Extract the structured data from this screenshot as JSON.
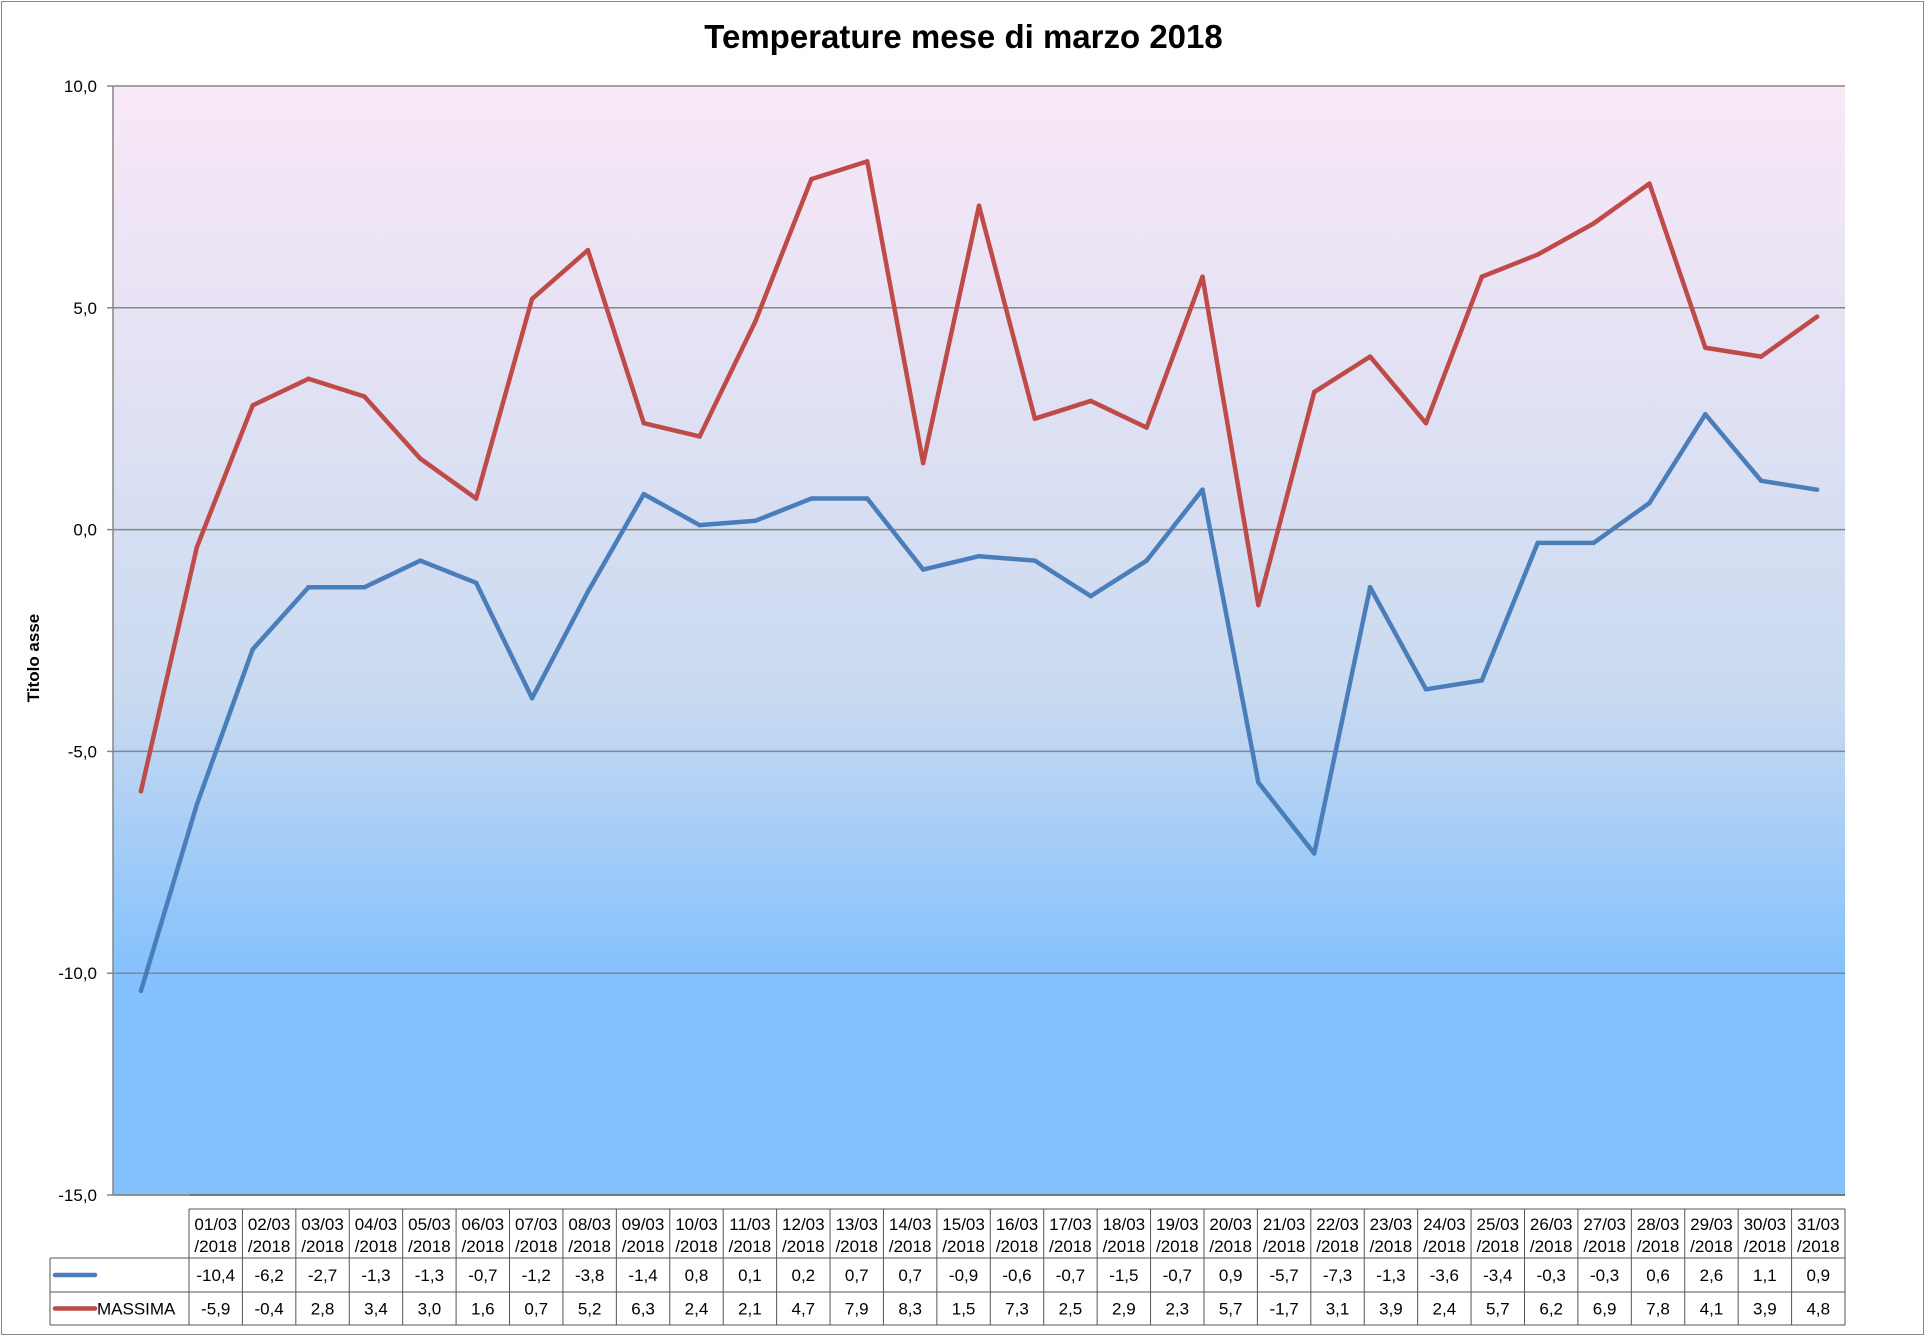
{
  "chart_data": {
    "type": "line",
    "title": "Temperature mese di marzo 2018",
    "ylabel": "Titolo asse",
    "xlabel": "",
    "ylim": [
      -15,
      10
    ],
    "y_ticks": [
      "10,0",
      "5,0",
      "0,0",
      "-5,0",
      "-10,0",
      "-15,0"
    ],
    "y_tick_values": [
      10,
      5,
      0,
      -5,
      -10,
      -15
    ],
    "grid": true,
    "legend": "data-table",
    "background_gradient": [
      "#f9e8f7",
      "#84c1fd"
    ],
    "categories": [
      [
        "01/03",
        "/2018"
      ],
      [
        "02/03",
        "/2018"
      ],
      [
        "03/03",
        "/2018"
      ],
      [
        "04/03",
        "/2018"
      ],
      [
        "05/03",
        "/2018"
      ],
      [
        "06/03",
        "/2018"
      ],
      [
        "07/03",
        "/2018"
      ],
      [
        "08/03",
        "/2018"
      ],
      [
        "09/03",
        "/2018"
      ],
      [
        "10/03",
        "/2018"
      ],
      [
        "11/03",
        "/2018"
      ],
      [
        "12/03",
        "/2018"
      ],
      [
        "13/03",
        "/2018"
      ],
      [
        "14/03",
        "/2018"
      ],
      [
        "15/03",
        "/2018"
      ],
      [
        "16/03",
        "/2018"
      ],
      [
        "17/03",
        "/2018"
      ],
      [
        "18/03",
        "/2018"
      ],
      [
        "19/03",
        "/2018"
      ],
      [
        "20/03",
        "/2018"
      ],
      [
        "21/03",
        "/2018"
      ],
      [
        "22/03",
        "/2018"
      ],
      [
        "23/03",
        "/2018"
      ],
      [
        "24/03",
        "/2018"
      ],
      [
        "25/03",
        "/2018"
      ],
      [
        "26/03",
        "/2018"
      ],
      [
        "27/03",
        "/2018"
      ],
      [
        "28/03",
        "/2018"
      ],
      [
        "29/03",
        "/2018"
      ],
      [
        "30/03",
        "/2018"
      ],
      [
        "31/03",
        "/2018"
      ]
    ],
    "series": [
      {
        "name": "",
        "color": "#4a7ebb",
        "values": [
          -10.4,
          -6.2,
          -2.7,
          -1.3,
          -1.3,
          -0.7,
          -1.2,
          -3.8,
          -1.4,
          0.8,
          0.1,
          0.2,
          0.7,
          0.7,
          -0.9,
          -0.6,
          -0.7,
          -1.5,
          -0.7,
          0.9,
          -5.7,
          -7.3,
          -1.3,
          -3.6,
          -3.4,
          -0.3,
          -0.3,
          0.6,
          2.6,
          1.1,
          0.9
        ],
        "labels": [
          "-10,4",
          "-6,2",
          "-2,7",
          "-1,3",
          "-1,3",
          "-0,7",
          "-1,2",
          "-3,8",
          "-1,4",
          "0,8",
          "0,1",
          "0,2",
          "0,7",
          "0,7",
          "-0,9",
          "-0,6",
          "-0,7",
          "-1,5",
          "-0,7",
          "0,9",
          "-5,7",
          "-7,3",
          "-1,3",
          "-3,6",
          "-3,4",
          "-0,3",
          "-0,3",
          "0,6",
          "2,6",
          "1,1",
          "0,9"
        ]
      },
      {
        "name": "MASSIMA",
        "color": "#be4b48",
        "values": [
          -5.9,
          -0.4,
          2.8,
          3.4,
          3.0,
          1.6,
          0.7,
          5.2,
          6.3,
          2.4,
          2.1,
          4.7,
          7.9,
          8.3,
          1.5,
          7.3,
          2.5,
          2.9,
          2.3,
          5.7,
          -1.7,
          3.1,
          3.9,
          2.4,
          5.7,
          6.2,
          6.9,
          7.8,
          4.1,
          3.9,
          4.8
        ],
        "labels": [
          "-5,9",
          "-0,4",
          "2,8",
          "3,4",
          "3,0",
          "1,6",
          "0,7",
          "5,2",
          "6,3",
          "2,4",
          "2,1",
          "4,7",
          "7,9",
          "8,3",
          "1,5",
          "7,3",
          "2,5",
          "2,9",
          "2,3",
          "5,7",
          "-1,7",
          "3,1",
          "3,9",
          "2,4",
          "5,7",
          "6,2",
          "6,9",
          "7,8",
          "4,1",
          "3,9",
          "4,8"
        ]
      }
    ]
  }
}
